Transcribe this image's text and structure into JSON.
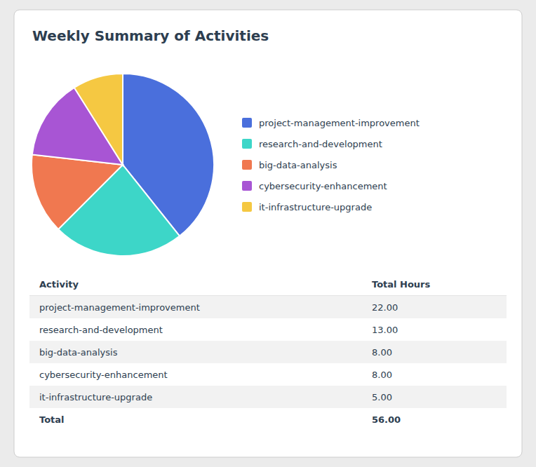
{
  "chart_data": {
    "type": "pie",
    "title": "Weekly Summary of Activities",
    "categories": [
      "project-management-improvement",
      "research-and-development",
      "big-data-analysis",
      "cybersecurity-enhancement",
      "it-infrastructure-upgrade"
    ],
    "values": [
      22.0,
      13.0,
      8.0,
      8.0,
      5.0
    ],
    "value_labels": [
      "22.00",
      "13.00",
      "8.00",
      "8.00",
      "5.00"
    ],
    "colors": [
      "#4a6fdc",
      "#3dd6c8",
      "#f07850",
      "#a855d4",
      "#f5c842"
    ],
    "legend": "right",
    "table": {
      "columns": [
        "Activity",
        "Total Hours"
      ],
      "total_label": "Total",
      "total": 56.0,
      "total_value_label": "56.00"
    }
  }
}
